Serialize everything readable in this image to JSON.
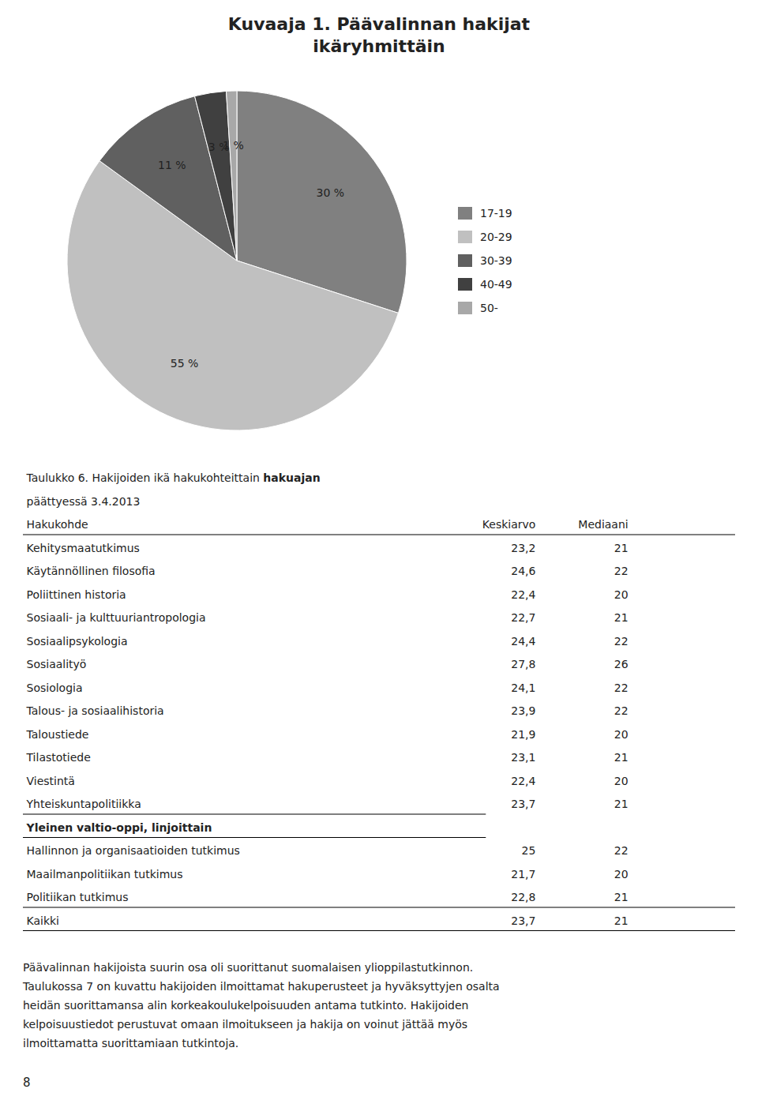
{
  "chart_data": [
    {
      "type": "pie",
      "title": "Kuvaaja 1. Päävalinnan hakijat\nikäryhmittäin",
      "categories": [
        "17-19",
        "20-29",
        "30-39",
        "40-49",
        "50-"
      ],
      "values": [
        30,
        55,
        11,
        3,
        1
      ],
      "value_labels": [
        "30 %",
        "55 %",
        "11 %",
        "3 %",
        "1 %"
      ],
      "colors": [
        "#808080",
        "#c0c0c0",
        "#606060",
        "#404040",
        "#a8a8a8"
      ],
      "data_labels": true,
      "legend": "right"
    },
    {
      "type": "table",
      "title": [
        "Taulukko 6. Haki",
        "joiden ikä hakukohteittain ",
        "hakuajan",
        "päättyessä 3.4.2013"
      ],
      "columns": [
        "Hakukohde",
        "Keskiarvo",
        "Mediaani"
      ],
      "rows": [
        [
          "Kehitysmaatutkimus",
          "23,2",
          "21"
        ],
        [
          "Käytännöllinen filosofia",
          "24,6",
          "22"
        ],
        [
          "Poliittinen historia",
          "22,4",
          "20"
        ],
        [
          "Sosiaali- ja kulttuuriantropologia",
          "22,7",
          "21"
        ],
        [
          "Sosiaalipsykologia",
          "24,4",
          "22"
        ],
        [
          "Sosiaalityö",
          "27,8",
          "26"
        ],
        [
          "Sosiologia",
          "24,1",
          "22"
        ],
        [
          "Talous- ja sosiaalihistoria",
          "23,9",
          "22"
        ],
        [
          "Taloustiede",
          "21,9",
          "20"
        ],
        [
          "Tilastotiede",
          "23,1",
          "21"
        ],
        [
          "Viestintä",
          "22,4",
          "20"
        ],
        [
          "Yhteiskuntapolitiikka",
          "23,7",
          "21"
        ]
      ],
      "section_header": "Yleinen valtio-oppi, linjoittain",
      "section_rows": [
        [
          "Hallinnon ja organisaatioiden tutkimus",
          "25",
          "22"
        ],
        [
          "Maailmanpolitiikan tutkimus",
          "21,7",
          "20"
        ],
        [
          "Politiikan tutkimus",
          "22,8",
          "21"
        ]
      ],
      "total_row": [
        "Kaikki",
        "23,7",
        "21"
      ]
    }
  ],
  "page": {
    "footer_text": "Päävalinnan hakijoista suurin osa oli suorittanut suomalaisen ylioppilastutkinnon.\nTaulukossa 7 on kuvattu hakijoiden ilmoittamat hakuperusteet ja hyväksyttyjen osalta\nheidän suorittamansa alin korkeakoulukelpoisuuden antama tutkinto. Hakijoiden\nkelpoisuustiedot perustuvat omaan ilmoitukseen ja hakija on voinut jättää myös\nilmoittamatta suorittamiaan tutkintoja.",
    "page_number": "8"
  }
}
